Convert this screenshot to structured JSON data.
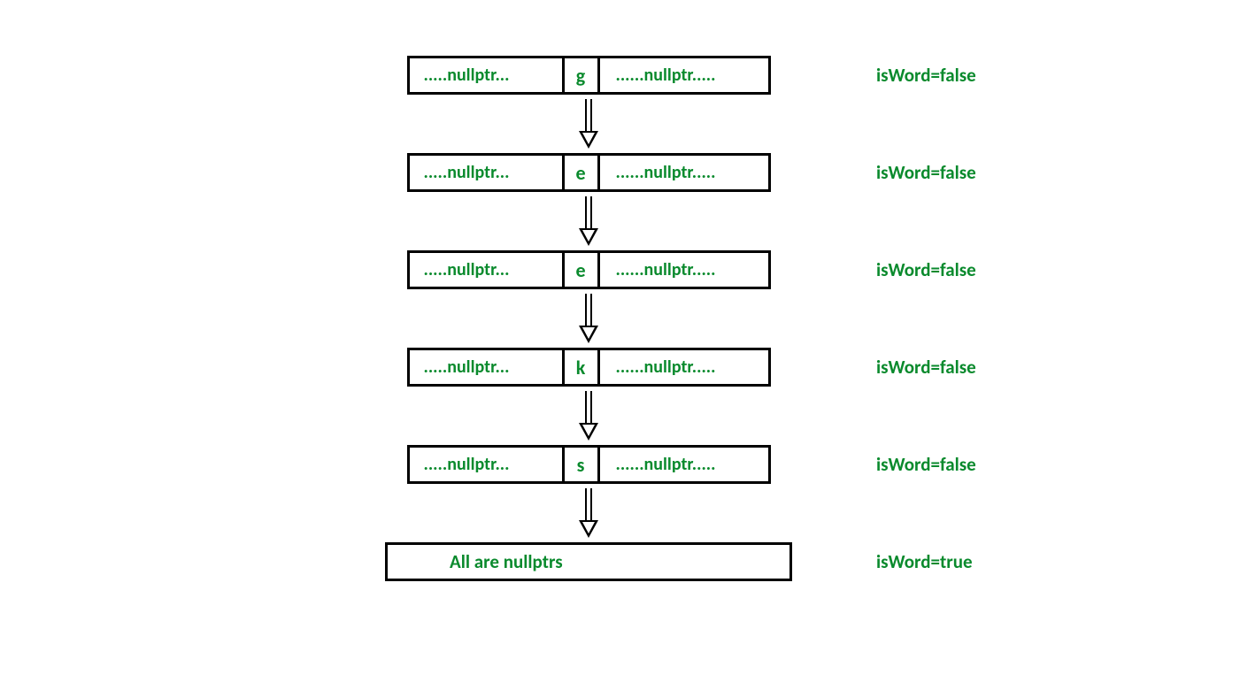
{
  "diagram": {
    "type": "flowchart",
    "text_color": "#0a8a2d",
    "border_color": "#000000",
    "background_color": "#ffffff",
    "font_family": "Calibri",
    "text_fontsize": 20,
    "border_width": 3,
    "nodes": [
      {
        "left": ".....nullptr...",
        "mid": "g",
        "right": "......nullptr.....",
        "label": "isWord=false",
        "final": false
      },
      {
        "left": ".....nullptr...",
        "mid": "e",
        "right": "......nullptr.....",
        "label": "isWord=false",
        "final": false
      },
      {
        "left": ".....nullptr...",
        "mid": "e",
        "right": "......nullptr.....",
        "label": "isWord=false",
        "final": false
      },
      {
        "left": ".....nullptr...",
        "mid": "k",
        "right": "......nullptr.....",
        "label": "isWord=false",
        "final": false
      },
      {
        "left": ".....nullptr...",
        "mid": "s",
        "right": "......nullptr.....",
        "label": "isWord=false",
        "final": false
      },
      {
        "final_text": "All are nullptrs",
        "label": "isWord=true",
        "final": true
      }
    ]
  }
}
